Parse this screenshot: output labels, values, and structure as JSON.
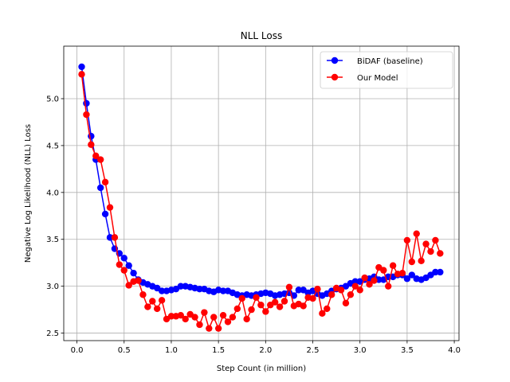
{
  "chart_data": {
    "type": "line",
    "title": "NLL Loss",
    "xlabel": "Step Count (in million)",
    "ylabel": "Negative Log Likelihood (NLL) Loss",
    "xlim": [
      -0.14,
      4.05
    ],
    "ylim": [
      2.42,
      5.56
    ],
    "xticks": [
      0.0,
      0.5,
      1.0,
      1.5,
      2.0,
      2.5,
      3.0,
      3.5,
      4.0
    ],
    "xtick_labels": [
      "0.0",
      "0.5",
      "1.0",
      "1.5",
      "2.0",
      "2.5",
      "3.0",
      "3.5",
      "4.0"
    ],
    "yticks": [
      2.5,
      3.0,
      3.5,
      4.0,
      4.5,
      5.0
    ],
    "ytick_labels": [
      "2.5",
      "3.0",
      "3.5",
      "4.0",
      "4.5",
      "5.0"
    ],
    "grid": true,
    "legend": "top-right",
    "series": [
      {
        "name": "BiDAF (baseline)",
        "color": "#0000ff",
        "x": [
          0.05,
          0.1,
          0.15,
          0.2,
          0.25,
          0.3,
          0.35,
          0.4,
          0.45,
          0.5,
          0.55,
          0.6,
          0.65,
          0.7,
          0.75,
          0.8,
          0.85,
          0.9,
          0.95,
          1.0,
          1.05,
          1.1,
          1.15,
          1.2,
          1.25,
          1.3,
          1.35,
          1.4,
          1.45,
          1.5,
          1.55,
          1.6,
          1.65,
          1.7,
          1.75,
          1.8,
          1.85,
          1.9,
          1.95,
          2.0,
          2.05,
          2.1,
          2.15,
          2.2,
          2.25,
          2.3,
          2.35,
          2.4,
          2.45,
          2.5,
          2.55,
          2.6,
          2.65,
          2.7,
          2.75,
          2.8,
          2.85,
          2.9,
          2.95,
          3.0,
          3.05,
          3.1,
          3.15,
          3.2,
          3.25,
          3.3,
          3.35,
          3.4,
          3.45,
          3.5,
          3.55,
          3.6,
          3.65,
          3.7,
          3.75,
          3.8,
          3.85
        ],
        "y": [
          5.34,
          4.95,
          4.6,
          4.35,
          4.05,
          3.77,
          3.52,
          3.4,
          3.35,
          3.3,
          3.22,
          3.14,
          3.07,
          3.04,
          3.02,
          3.0,
          2.98,
          2.95,
          2.95,
          2.96,
          2.97,
          3.0,
          3.0,
          2.99,
          2.98,
          2.97,
          2.97,
          2.95,
          2.94,
          2.96,
          2.95,
          2.95,
          2.93,
          2.91,
          2.9,
          2.91,
          2.9,
          2.91,
          2.92,
          2.93,
          2.92,
          2.9,
          2.91,
          2.92,
          2.93,
          2.9,
          2.96,
          2.96,
          2.93,
          2.95,
          2.92,
          2.9,
          2.92,
          2.95,
          2.97,
          2.98,
          3.0,
          3.03,
          3.05,
          3.05,
          3.07,
          3.08,
          3.1,
          3.07,
          3.07,
          3.1,
          3.1,
          3.12,
          3.12,
          3.08,
          3.12,
          3.08,
          3.07,
          3.09,
          3.12,
          3.15,
          3.15
        ]
      },
      {
        "name": "Our Model",
        "color": "#ff0000",
        "x": [
          0.05,
          0.1,
          0.15,
          0.2,
          0.25,
          0.3,
          0.35,
          0.4,
          0.45,
          0.5,
          0.55,
          0.6,
          0.65,
          0.7,
          0.75,
          0.8,
          0.85,
          0.9,
          0.95,
          1.0,
          1.05,
          1.1,
          1.15,
          1.2,
          1.25,
          1.3,
          1.35,
          1.4,
          1.45,
          1.5,
          1.55,
          1.6,
          1.65,
          1.7,
          1.75,
          1.8,
          1.85,
          1.9,
          1.95,
          2.0,
          2.05,
          2.1,
          2.15,
          2.2,
          2.25,
          2.3,
          2.35,
          2.4,
          2.45,
          2.5,
          2.55,
          2.6,
          2.65,
          2.7,
          2.75,
          2.8,
          2.85,
          2.9,
          2.95,
          3.0,
          3.05,
          3.1,
          3.15,
          3.2,
          3.25,
          3.3,
          3.35,
          3.4,
          3.45,
          3.5,
          3.55,
          3.6,
          3.65,
          3.7,
          3.75,
          3.8,
          3.85
        ],
        "y": [
          5.26,
          4.83,
          4.51,
          4.39,
          4.35,
          4.11,
          3.84,
          3.52,
          3.23,
          3.17,
          3.01,
          3.05,
          3.06,
          2.91,
          2.78,
          2.84,
          2.76,
          2.85,
          2.65,
          2.68,
          2.68,
          2.69,
          2.65,
          2.7,
          2.67,
          2.59,
          2.72,
          2.55,
          2.67,
          2.55,
          2.69,
          2.62,
          2.67,
          2.76,
          2.87,
          2.65,
          2.75,
          2.88,
          2.8,
          2.73,
          2.8,
          2.83,
          2.78,
          2.84,
          2.99,
          2.79,
          2.81,
          2.79,
          2.88,
          2.87,
          2.97,
          2.71,
          2.76,
          2.91,
          2.98,
          2.96,
          2.82,
          2.91,
          3.0,
          2.96,
          3.09,
          3.02,
          3.06,
          3.2,
          3.17,
          3.0,
          3.22,
          3.13,
          3.14,
          3.49,
          3.26,
          3.56,
          3.27,
          3.45,
          3.37,
          3.49,
          3.35
        ]
      }
    ]
  }
}
